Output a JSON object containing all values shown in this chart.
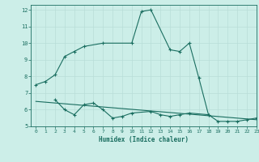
{
  "xlabel": "Humidex (Indice chaleur)",
  "background_color": "#cceee8",
  "grid_color": "#b8ddd8",
  "line_color": "#1a6e60",
  "xlim": [
    -0.5,
    23
  ],
  "ylim": [
    5,
    12.3
  ],
  "xticks": [
    0,
    1,
    2,
    3,
    4,
    5,
    6,
    7,
    8,
    9,
    10,
    11,
    12,
    13,
    14,
    15,
    16,
    17,
    18,
    19,
    20,
    21,
    22,
    23
  ],
  "yticks": [
    5,
    6,
    7,
    8,
    9,
    10,
    11,
    12
  ],
  "series1": {
    "x": [
      0,
      1,
      2,
      3,
      4,
      5,
      7,
      10,
      11,
      12,
      14,
      15,
      16,
      17,
      18
    ],
    "y": [
      7.5,
      7.7,
      8.1,
      9.2,
      9.5,
      9.8,
      10.0,
      10.0,
      11.9,
      12.0,
      9.6,
      9.5,
      10.0,
      7.9,
      5.7
    ]
  },
  "series2": {
    "x": [
      2,
      3,
      4,
      5,
      6,
      7,
      8,
      9,
      10,
      12,
      13,
      14,
      15,
      16,
      18,
      19,
      20,
      21,
      22,
      23
    ],
    "y": [
      6.6,
      6.0,
      5.7,
      6.3,
      6.4,
      6.0,
      5.5,
      5.6,
      5.8,
      5.9,
      5.7,
      5.6,
      5.7,
      5.8,
      5.7,
      5.3,
      5.3,
      5.3,
      5.4,
      5.5
    ]
  },
  "series3": {
    "x": [
      0,
      23
    ],
    "y": [
      6.5,
      5.4
    ]
  }
}
